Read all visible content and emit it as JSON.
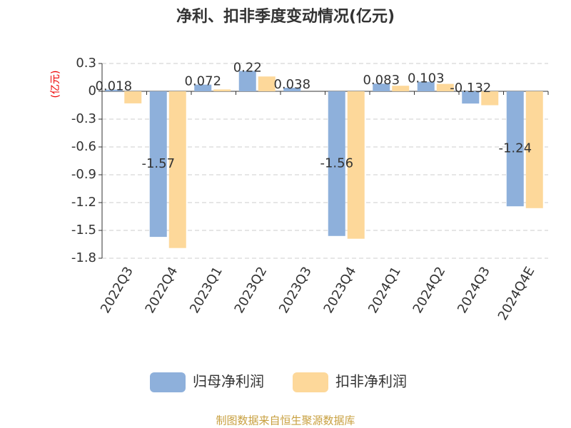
{
  "chart_data": {
    "type": "bar",
    "title": "净利、扣非季度变动情况(亿元)",
    "y_label": "(亿元)",
    "categories": [
      "2022Q3",
      "2022Q4",
      "2023Q1",
      "2023Q2",
      "2023Q3",
      "2023Q4",
      "2024Q1",
      "2024Q2",
      "2024Q3",
      "2024Q4E"
    ],
    "series": [
      {
        "name": "归母净利润",
        "color": "#8eb0db",
        "values": [
          0.018,
          -1.57,
          0.072,
          0.22,
          0.038,
          -1.56,
          0.083,
          0.103,
          -0.132,
          -1.24
        ]
      },
      {
        "name": "扣非净利润",
        "color": "#fdd89a",
        "values": [
          -0.13,
          -1.69,
          0.02,
          0.16,
          0.0,
          -1.59,
          0.06,
          0.08,
          -0.15,
          -1.26
        ]
      }
    ],
    "ylim": [
      -1.8,
      0.3
    ],
    "yticks": [
      0.3,
      0,
      -0.3,
      -0.6,
      -0.9,
      -1.2,
      -1.5,
      -1.8
    ],
    "grid": true,
    "source": "制图数据来自恒生聚源数据库"
  }
}
